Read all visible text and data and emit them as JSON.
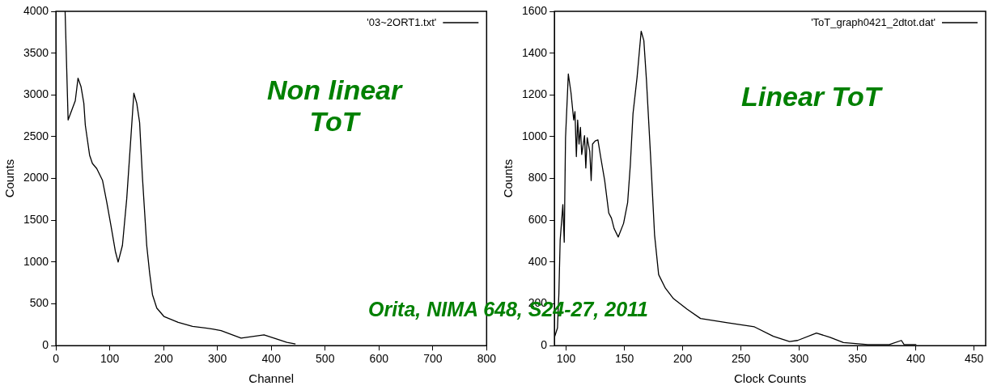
{
  "chart_data": [
    {
      "type": "line",
      "xlabel": "Channel",
      "ylabel": "Counts",
      "xlim": [
        0,
        800
      ],
      "xticks": [
        0,
        100,
        200,
        300,
        400,
        500,
        600,
        700,
        800
      ],
      "ylim": [
        0,
        4000
      ],
      "yticks": [
        0,
        500,
        1000,
        1500,
        2000,
        2500,
        3000,
        3500,
        4000
      ],
      "grid": false,
      "legend": "top right",
      "marker": "none",
      "line_style": "solid",
      "annotations": [
        "Non linear\nToT",
        "Orita, NIMA 648, S24-27, 2011"
      ],
      "x": [
        17,
        22.6,
        35.9,
        41,
        46.5,
        51.8,
        54.5,
        62.5,
        67.7,
        75.7,
        86.4,
        94.3,
        102.3,
        110.3,
        115.5,
        123.5,
        131.5,
        139.4,
        144.7,
        150.1,
        155.4,
        160.6,
        168.6,
        174,
        179.3,
        187.3,
        200.5,
        227,
        253.7,
        290.8,
        306.8,
        343.9,
        386.5,
        405,
        429,
        445
      ],
      "series": [
        {
          "name": "'03~2ORT1.txt'",
          "color": "#000000",
          "values": [
            4000,
            2700,
            2930,
            3200,
            3100,
            2900,
            2640,
            2280,
            2180,
            2120,
            1980,
            1720,
            1430,
            1130,
            1000,
            1200,
            1760,
            2510,
            3020,
            2900,
            2670,
            2020,
            1200,
            870,
            610,
            450,
            350,
            280,
            230,
            200,
            180,
            90,
            130,
            90,
            40,
            20
          ]
        }
      ]
    },
    {
      "type": "line",
      "xlabel": "Clock Counts",
      "ylabel": "Counts",
      "xlim": [
        90,
        460
      ],
      "xticks": [
        100,
        150,
        200,
        250,
        300,
        350,
        400,
        450
      ],
      "ylim": [
        0,
        1600
      ],
      "yticks": [
        0,
        200,
        400,
        600,
        800,
        1000,
        1200,
        1400,
        1600
      ],
      "grid": false,
      "legend": "top right",
      "marker": "none",
      "line_style": "solid",
      "annotations": [
        "Linear ToT"
      ],
      "x": [
        90.3,
        92.6,
        93.8,
        94.9,
        96,
        97.2,
        98.4,
        99.5,
        101.9,
        104.2,
        106.5,
        107.6,
        108.8,
        109.9,
        111.1,
        112.3,
        113.4,
        115.8,
        116.9,
        118.1,
        120.3,
        121.5,
        122.7,
        125,
        127.3,
        129.6,
        133.1,
        136.6,
        138.9,
        141.2,
        144.7,
        149.3,
        152.8,
        155.1,
        157.4,
        160.9,
        164.4,
        166.7,
        168.9,
        172.4,
        175.9,
        179.4,
        185.2,
        192.1,
        203.7,
        215.3,
        238.4,
        261.6,
        277.8,
        291.7,
        298.6,
        314.8,
        326.4,
        338,
        358.8,
        377.3,
        387.7,
        390,
        400.5
      ],
      "series": [
        {
          "name": "'ToT_graph0421_2dtot.dat'",
          "color": "#000000",
          "values": [
            45,
            85,
            250,
            505,
            585,
            675,
            495,
            995,
            1300,
            1210,
            1080,
            1120,
            905,
            1080,
            965,
            1045,
            915,
            1005,
            850,
            995,
            930,
            790,
            965,
            980,
            985,
            905,
            790,
            635,
            610,
            560,
            520,
            585,
            685,
            865,
            1110,
            1285,
            1505,
            1460,
            1275,
            915,
            530,
            340,
            275,
            225,
            175,
            130,
            110,
            90,
            45,
            20,
            25,
            60,
            40,
            15,
            5,
            5,
            25,
            5,
            5
          ]
        }
      ]
    }
  ]
}
